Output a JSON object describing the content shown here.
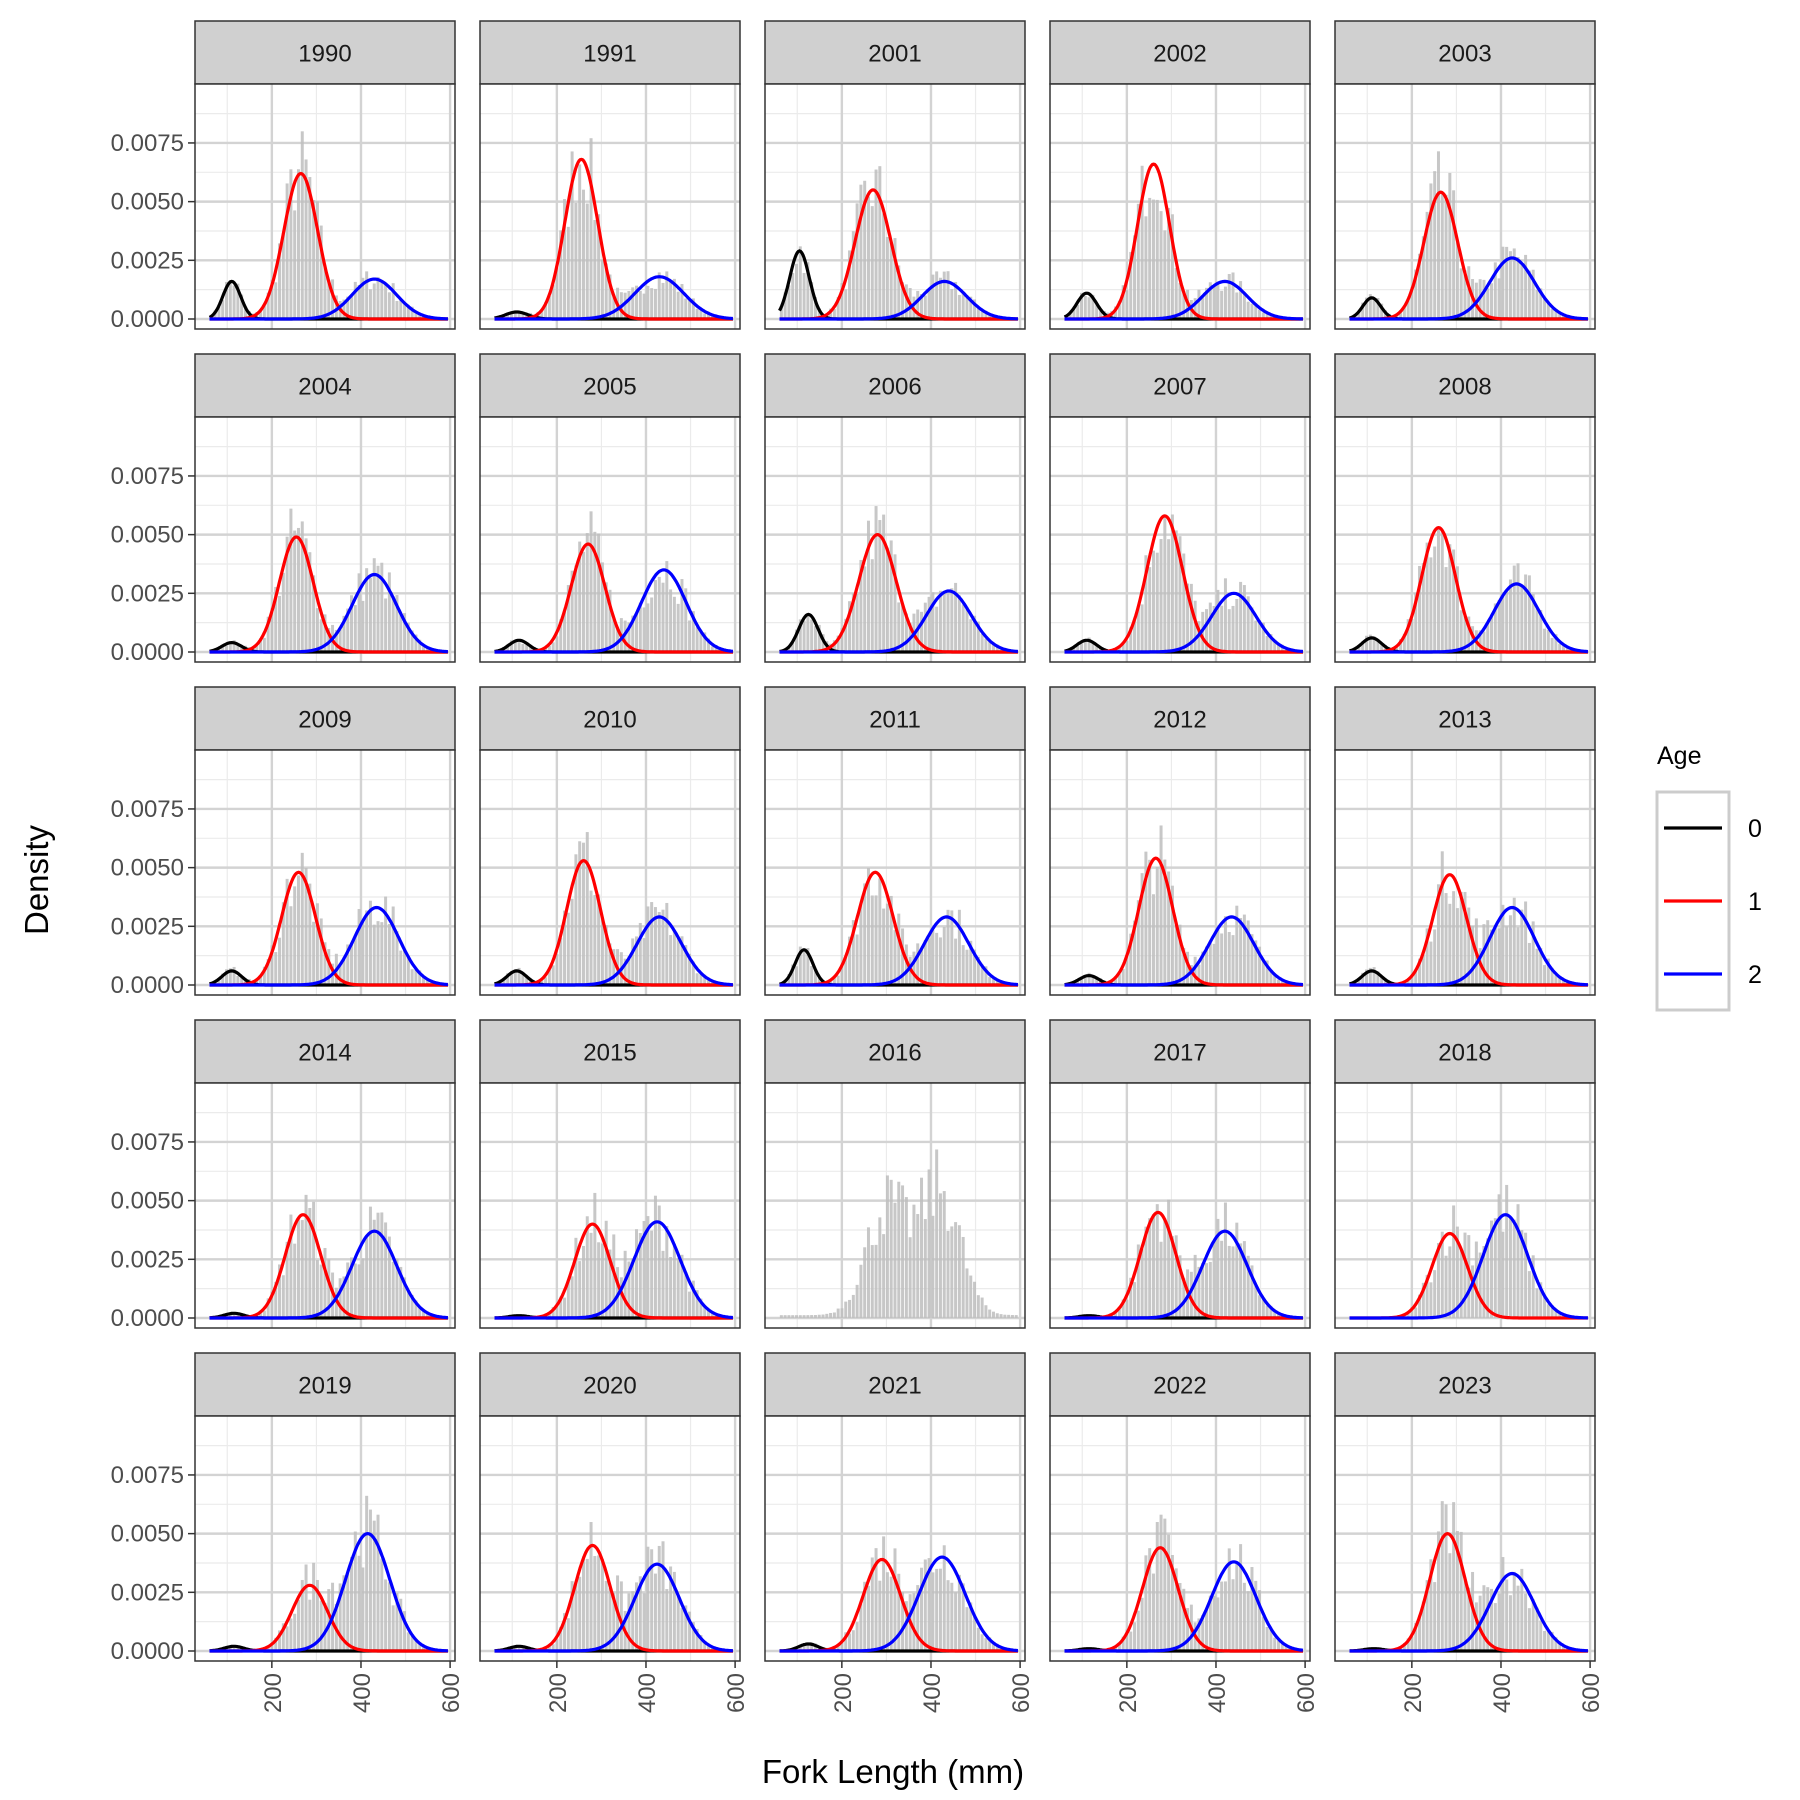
{
  "chart_data": {
    "type": "histogram-with-density-curves",
    "facet_by": "year",
    "xlabel": "Fork Length (mm)",
    "ylabel": "Density",
    "xlim": [
      50,
      600
    ],
    "ylim": [
      0,
      0.0095
    ],
    "x_ticks": [
      200,
      400,
      600
    ],
    "x_tick_labels": [
      "200",
      "400",
      "600"
    ],
    "y_ticks": [
      0,
      0.0025,
      0.005,
      0.0075
    ],
    "y_tick_labels": [
      "0.0000",
      "0.0025",
      "0.0050",
      "0.0075"
    ],
    "grid": true,
    "legend": {
      "title": "Age",
      "placement": "right",
      "entries": [
        {
          "label": "0",
          "color": "#000000"
        },
        {
          "label": "1",
          "color": "#ff0000"
        },
        {
          "label": "2",
          "color": "#0000ff"
        }
      ]
    },
    "histogram_color": "#bdbdbd",
    "panels": [
      {
        "year": "1990",
        "curves": [
          {
            "age": "0",
            "mean": 110,
            "peak": 0.0016,
            "sd": 20
          },
          {
            "age": "1",
            "mean": 265,
            "peak": 0.0062,
            "sd": 38
          },
          {
            "age": "2",
            "mean": 430,
            "peak": 0.0017,
            "sd": 50
          }
        ]
      },
      {
        "year": "1991",
        "curves": [
          {
            "age": "0",
            "mean": 110,
            "peak": 0.0003,
            "sd": 25
          },
          {
            "age": "1",
            "mean": 255,
            "peak": 0.0068,
            "sd": 37
          },
          {
            "age": "2",
            "mean": 430,
            "peak": 0.0018,
            "sd": 55
          }
        ]
      },
      {
        "year": "2001",
        "curves": [
          {
            "age": "0",
            "mean": 105,
            "peak": 0.0029,
            "sd": 22
          },
          {
            "age": "1",
            "mean": 270,
            "peak": 0.0055,
            "sd": 40
          },
          {
            "age": "2",
            "mean": 430,
            "peak": 0.0016,
            "sd": 50
          }
        ]
      },
      {
        "year": "2002",
        "curves": [
          {
            "age": "0",
            "mean": 110,
            "peak": 0.0011,
            "sd": 22
          },
          {
            "age": "1",
            "mean": 260,
            "peak": 0.0066,
            "sd": 36
          },
          {
            "age": "2",
            "mean": 420,
            "peak": 0.0016,
            "sd": 50
          }
        ]
      },
      {
        "year": "2003",
        "curves": [
          {
            "age": "0",
            "mean": 110,
            "peak": 0.0009,
            "sd": 20
          },
          {
            "age": "1",
            "mean": 265,
            "peak": 0.0054,
            "sd": 38
          },
          {
            "age": "2",
            "mean": 425,
            "peak": 0.0026,
            "sd": 50
          }
        ]
      },
      {
        "year": "2004",
        "curves": [
          {
            "age": "0",
            "mean": 110,
            "peak": 0.0004,
            "sd": 22
          },
          {
            "age": "1",
            "mean": 255,
            "peak": 0.0049,
            "sd": 38
          },
          {
            "age": "2",
            "mean": 430,
            "peak": 0.0033,
            "sd": 50
          }
        ]
      },
      {
        "year": "2005",
        "curves": [
          {
            "age": "0",
            "mean": 115,
            "peak": 0.0005,
            "sd": 22
          },
          {
            "age": "1",
            "mean": 270,
            "peak": 0.0046,
            "sd": 38
          },
          {
            "age": "2",
            "mean": 440,
            "peak": 0.0035,
            "sd": 50
          }
        ]
      },
      {
        "year": "2006",
        "curves": [
          {
            "age": "0",
            "mean": 125,
            "peak": 0.0016,
            "sd": 22
          },
          {
            "age": "1",
            "mean": 280,
            "peak": 0.005,
            "sd": 42
          },
          {
            "age": "2",
            "mean": 440,
            "peak": 0.0026,
            "sd": 50
          }
        ]
      },
      {
        "year": "2007",
        "curves": [
          {
            "age": "0",
            "mean": 110,
            "peak": 0.0005,
            "sd": 22
          },
          {
            "age": "1",
            "mean": 285,
            "peak": 0.0058,
            "sd": 40
          },
          {
            "age": "2",
            "mean": 440,
            "peak": 0.0025,
            "sd": 50
          }
        ]
      },
      {
        "year": "2008",
        "curves": [
          {
            "age": "0",
            "mean": 110,
            "peak": 0.0006,
            "sd": 22
          },
          {
            "age": "1",
            "mean": 260,
            "peak": 0.0053,
            "sd": 38
          },
          {
            "age": "2",
            "mean": 435,
            "peak": 0.0029,
            "sd": 50
          }
        ]
      },
      {
        "year": "2009",
        "curves": [
          {
            "age": "0",
            "mean": 110,
            "peak": 0.0006,
            "sd": 22
          },
          {
            "age": "1",
            "mean": 260,
            "peak": 0.0048,
            "sd": 38
          },
          {
            "age": "2",
            "mean": 435,
            "peak": 0.0033,
            "sd": 50
          }
        ]
      },
      {
        "year": "2010",
        "curves": [
          {
            "age": "0",
            "mean": 110,
            "peak": 0.0006,
            "sd": 22
          },
          {
            "age": "1",
            "mean": 260,
            "peak": 0.0053,
            "sd": 38
          },
          {
            "age": "2",
            "mean": 430,
            "peak": 0.0029,
            "sd": 50
          }
        ]
      },
      {
        "year": "2011",
        "curves": [
          {
            "age": "0",
            "mean": 115,
            "peak": 0.0015,
            "sd": 20
          },
          {
            "age": "1",
            "mean": 275,
            "peak": 0.0048,
            "sd": 40
          },
          {
            "age": "2",
            "mean": 435,
            "peak": 0.0029,
            "sd": 50
          }
        ]
      },
      {
        "year": "2012",
        "curves": [
          {
            "age": "0",
            "mean": 115,
            "peak": 0.0004,
            "sd": 22
          },
          {
            "age": "1",
            "mean": 265,
            "peak": 0.0054,
            "sd": 38
          },
          {
            "age": "2",
            "mean": 435,
            "peak": 0.0029,
            "sd": 50
          }
        ]
      },
      {
        "year": "2013",
        "curves": [
          {
            "age": "0",
            "mean": 110,
            "peak": 0.0006,
            "sd": 22
          },
          {
            "age": "1",
            "mean": 285,
            "peak": 0.0047,
            "sd": 38
          },
          {
            "age": "2",
            "mean": 425,
            "peak": 0.0033,
            "sd": 50
          }
        ]
      },
      {
        "year": "2014",
        "curves": [
          {
            "age": "0",
            "mean": 115,
            "peak": 0.0002,
            "sd": 22
          },
          {
            "age": "1",
            "mean": 270,
            "peak": 0.0044,
            "sd": 40
          },
          {
            "age": "2",
            "mean": 430,
            "peak": 0.0037,
            "sd": 50
          }
        ]
      },
      {
        "year": "2015",
        "curves": [
          {
            "age": "0",
            "mean": 115,
            "peak": 0.0001,
            "sd": 22
          },
          {
            "age": "1",
            "mean": 280,
            "peak": 0.004,
            "sd": 40
          },
          {
            "age": "2",
            "mean": 425,
            "peak": 0.0041,
            "sd": 52
          }
        ]
      },
      {
        "year": "2016",
        "curves": []
      },
      {
        "year": "2017",
        "curves": [
          {
            "age": "0",
            "mean": 115,
            "peak": 0.0001,
            "sd": 22
          },
          {
            "age": "1",
            "mean": 270,
            "peak": 0.0045,
            "sd": 40
          },
          {
            "age": "2",
            "mean": 420,
            "peak": 0.0037,
            "sd": 50
          }
        ]
      },
      {
        "year": "2018",
        "curves": [
          {
            "age": "1",
            "mean": 285,
            "peak": 0.0036,
            "sd": 40
          },
          {
            "age": "2",
            "mean": 410,
            "peak": 0.0044,
            "sd": 50
          }
        ]
      },
      {
        "year": "2019",
        "curves": [
          {
            "age": "0",
            "mean": 115,
            "peak": 0.0002,
            "sd": 22
          },
          {
            "age": "1",
            "mean": 285,
            "peak": 0.0028,
            "sd": 40
          },
          {
            "age": "2",
            "mean": 415,
            "peak": 0.005,
            "sd": 50
          }
        ]
      },
      {
        "year": "2020",
        "curves": [
          {
            "age": "0",
            "mean": 115,
            "peak": 0.0002,
            "sd": 22
          },
          {
            "age": "1",
            "mean": 280,
            "peak": 0.0045,
            "sd": 40
          },
          {
            "age": "2",
            "mean": 425,
            "peak": 0.0037,
            "sd": 50
          }
        ]
      },
      {
        "year": "2021",
        "curves": [
          {
            "age": "0",
            "mean": 125,
            "peak": 0.0003,
            "sd": 22
          },
          {
            "age": "1",
            "mean": 290,
            "peak": 0.0039,
            "sd": 42
          },
          {
            "age": "2",
            "mean": 425,
            "peak": 0.004,
            "sd": 52
          }
        ]
      },
      {
        "year": "2022",
        "curves": [
          {
            "age": "0",
            "mean": 115,
            "peak": 0.0001,
            "sd": 22
          },
          {
            "age": "1",
            "mean": 275,
            "peak": 0.0044,
            "sd": 40
          },
          {
            "age": "2",
            "mean": 440,
            "peak": 0.0038,
            "sd": 50
          }
        ]
      },
      {
        "year": "2023",
        "curves": [
          {
            "age": "0",
            "mean": 115,
            "peak": 0.0001,
            "sd": 22
          },
          {
            "age": "1",
            "mean": 280,
            "peak": 0.005,
            "sd": 40
          },
          {
            "age": "2",
            "mean": 425,
            "peak": 0.0033,
            "sd": 50
          }
        ]
      }
    ]
  }
}
